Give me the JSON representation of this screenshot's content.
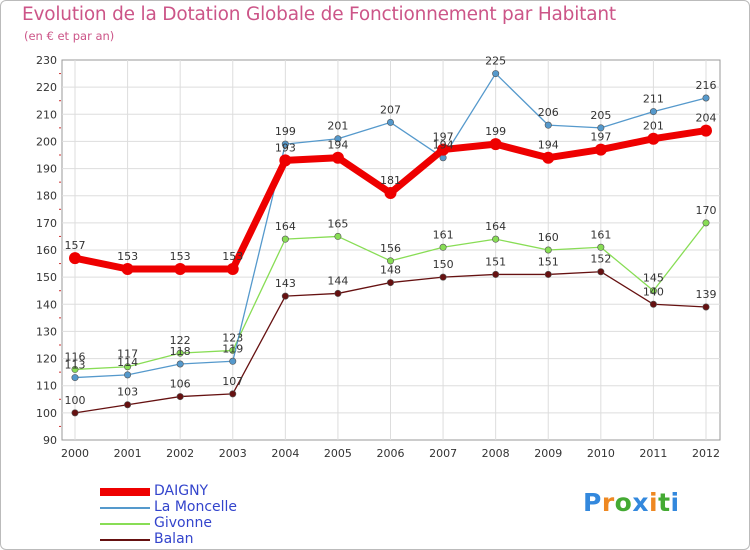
{
  "header": {
    "title": "Evolution de la Dotation Globale de Fonctionnement par Habitant",
    "subtitle": "(en € et par an)"
  },
  "chart_data": {
    "type": "line",
    "x": [
      "2000",
      "2001",
      "2002",
      "2003",
      "2004",
      "2005",
      "2006",
      "2007",
      "2008",
      "2009",
      "2010",
      "2011",
      "2012"
    ],
    "ylim": [
      90,
      230
    ],
    "yticks": [
      90,
      100,
      110,
      120,
      130,
      140,
      150,
      160,
      170,
      180,
      190,
      200,
      210,
      220,
      230
    ],
    "grid": true,
    "series": [
      {
        "name": "DAIGNY",
        "color": "#ee0000",
        "values": [
          157,
          153,
          153,
          153,
          193,
          194,
          181,
          197,
          199,
          194,
          197,
          201,
          204
        ]
      },
      {
        "name": "La Moncelle",
        "color": "#5599cc",
        "values": [
          113,
          114,
          118,
          119,
          199,
          201,
          207,
          194,
          225,
          206,
          205,
          211,
          216
        ]
      },
      {
        "name": "Givonne",
        "color": "#88dd55",
        "values": [
          116,
          117,
          122,
          123,
          164,
          165,
          156,
          161,
          164,
          160,
          161,
          145,
          170
        ]
      },
      {
        "name": "Balan",
        "color": "#661111",
        "values": [
          100,
          103,
          106,
          107,
          143,
          144,
          148,
          150,
          151,
          151,
          152,
          140,
          139
        ]
      }
    ]
  },
  "logo": {
    "letters": [
      "P",
      "r",
      "o",
      "x",
      "i",
      "t",
      "i"
    ],
    "colors": [
      "#3388dd",
      "#ee8822",
      "#44aa33",
      "#3388dd",
      "#ee8822",
      "#44aa33",
      "#3388dd"
    ]
  }
}
